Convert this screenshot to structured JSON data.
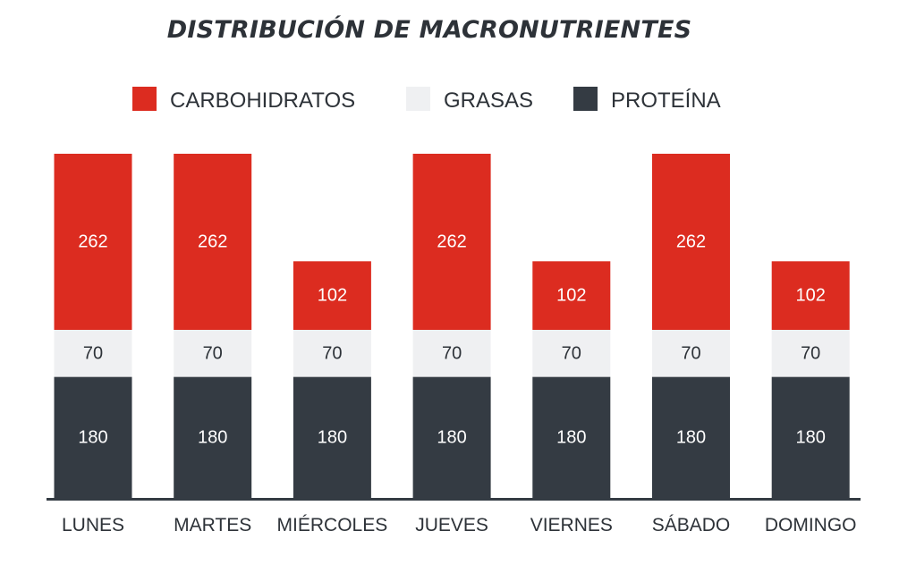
{
  "chart_data": {
    "type": "bar",
    "stacked": true,
    "title": "DISTRIBUCIÓN DE MACRONUTRIENTES",
    "categories": [
      "LUNES",
      "MARTES",
      "MIÉRCOLES",
      "JUEVES",
      "VIERNES",
      "SÁBADO",
      "DOMINGO"
    ],
    "series": [
      {
        "name": "PROTEÍNA",
        "color": "#343b43",
        "label_color": "#ffffff",
        "values": [
          180,
          180,
          180,
          180,
          180,
          180,
          180
        ]
      },
      {
        "name": "GRASAS",
        "color": "#eff0f2",
        "label_color": "#2d3238",
        "values": [
          70,
          70,
          70,
          70,
          70,
          70,
          70
        ]
      },
      {
        "name": "CARBOHIDRATOS",
        "color": "#dc2c20",
        "label_color": "#ffffff",
        "values": [
          262,
          262,
          102,
          262,
          102,
          262,
          102
        ]
      }
    ],
    "legend_order": [
      "CARBOHIDRATOS",
      "GRASAS",
      "PROTEÍNA"
    ],
    "legend_position": "top",
    "ylim": [
      0,
      512
    ],
    "grid": false,
    "axis_color": "#343b43"
  }
}
